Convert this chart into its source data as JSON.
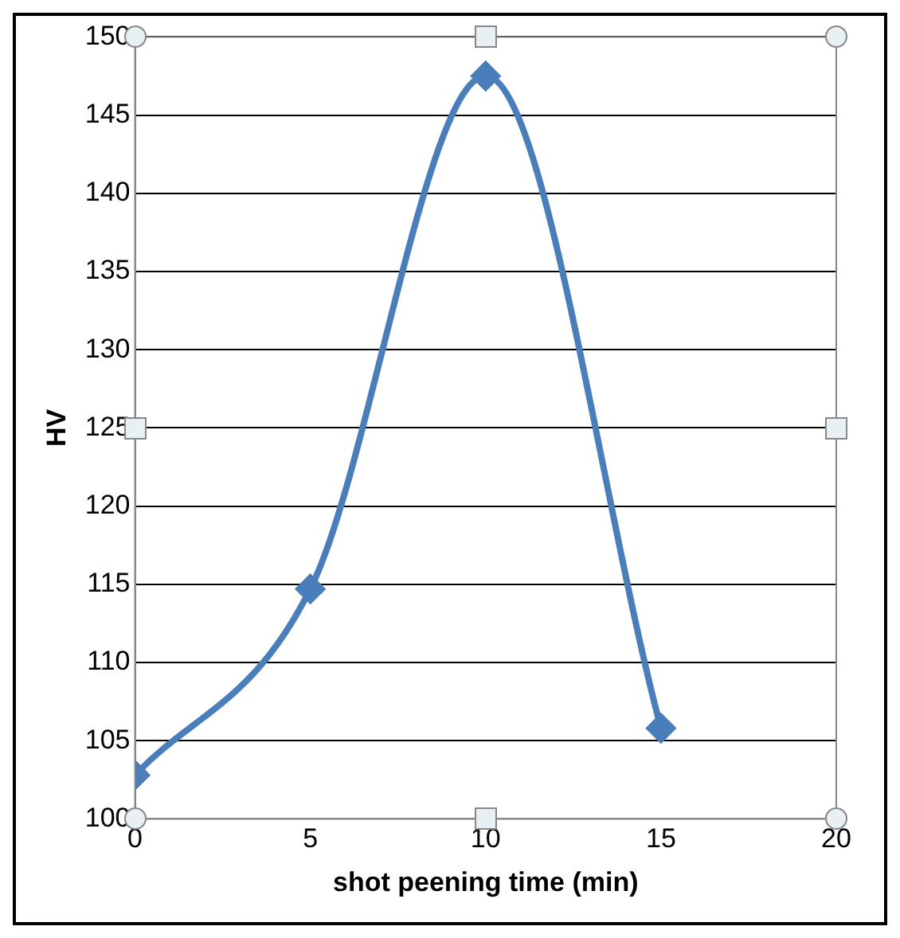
{
  "chart_data": {
    "type": "line",
    "xlabel": "shot peening time (min)",
    "ylabel": "HV",
    "x": [
      0,
      5,
      10,
      15
    ],
    "series": [
      {
        "color": "#4a7ebb",
        "values": [
          102.8,
          114.7,
          147.5,
          105.8
        ]
      }
    ],
    "xlim": [
      0,
      20
    ],
    "xticks": [
      0,
      5,
      10,
      15,
      20
    ],
    "ylim": [
      100,
      150
    ],
    "yticks": [
      100,
      105,
      110,
      115,
      120,
      125,
      130,
      135,
      140,
      145,
      150
    ],
    "grid": "y",
    "legend": false,
    "marker": "diamond",
    "line_style": "solid"
  }
}
